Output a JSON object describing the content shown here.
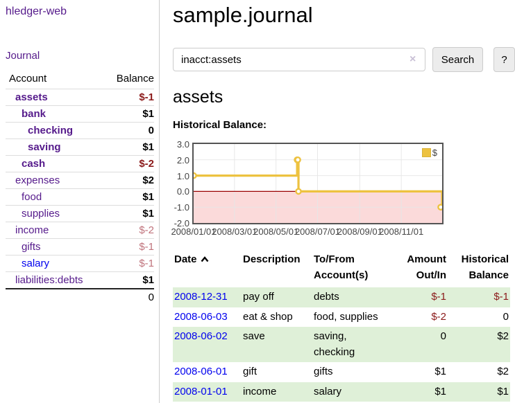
{
  "sidebar": {
    "app_title": "hledger-web",
    "journal_link": "Journal",
    "accounts_table": {
      "headers": {
        "account": "Account",
        "balance": "Balance"
      },
      "rows": [
        {
          "name": "assets",
          "depth": 1,
          "bold": true,
          "balance": "$-1",
          "balance_style": "neg-strong"
        },
        {
          "name": "bank",
          "depth": 2,
          "bold": true,
          "balance": "$1",
          "balance_style": ""
        },
        {
          "name": "checking",
          "depth": 3,
          "bold": true,
          "balance": "0",
          "balance_style": ""
        },
        {
          "name": "saving",
          "depth": 3,
          "bold": true,
          "balance": "$1",
          "balance_style": ""
        },
        {
          "name": "cash",
          "depth": 2,
          "bold": true,
          "balance": "$-2",
          "balance_style": "neg-strong"
        },
        {
          "name": "expenses",
          "depth": 1,
          "bold": false,
          "balance": "$2",
          "balance_style": ""
        },
        {
          "name": "food",
          "depth": 2,
          "bold": false,
          "balance": "$1",
          "balance_style": ""
        },
        {
          "name": "supplies",
          "depth": 2,
          "bold": false,
          "balance": "$1",
          "balance_style": ""
        },
        {
          "name": "income",
          "depth": 1,
          "bold": false,
          "balance": "$-2",
          "balance_style": "neg-faded"
        },
        {
          "name": "gifts",
          "depth": 2,
          "bold": false,
          "balance": "$-1",
          "balance_style": "neg-faded"
        },
        {
          "name": "salary",
          "depth": 2,
          "bold": false,
          "balance": "$-1",
          "balance_style": "neg-faded",
          "link_blue": true
        },
        {
          "name": "liabilities:debts",
          "depth": 1,
          "bold": false,
          "balance": "$1",
          "balance_style": ""
        }
      ],
      "total": "0"
    }
  },
  "main": {
    "title": "sample.journal",
    "search": {
      "value": "inacct:assets",
      "clear_icon": "×",
      "search_button": "Search",
      "help_button": "?"
    },
    "account_heading": "assets",
    "chart_heading": "Historical Balance:"
  },
  "chart_data": {
    "type": "line",
    "title": "Historical Balance",
    "style": "step-after with point markers, negative region shaded",
    "series": [
      {
        "name": "$",
        "color": "#edc240",
        "points": [
          {
            "x": "2008-01-01",
            "y": 1
          },
          {
            "x": "2008-06-01",
            "y": 2
          },
          {
            "x": "2008-06-02",
            "y": 2
          },
          {
            "x": "2008-06-03",
            "y": 0
          },
          {
            "x": "2008-12-31",
            "y": -1
          }
        ]
      }
    ],
    "x_range": [
      "2008-01-01",
      "2008-12-31"
    ],
    "x_ticks": [
      "2008/01/01",
      "2008/03/01",
      "2008/05/01",
      "2008/07/01",
      "2008/09/01",
      "2008/11/01"
    ],
    "y_ticks": [
      "3.0",
      "2.0",
      "1.0",
      "0.0",
      "-1.0",
      "-2.0"
    ],
    "ylim": [
      -2,
      3
    ],
    "grid": true,
    "legend": {
      "label": "$",
      "position": "top-right"
    },
    "colors": {
      "line": "#edc240",
      "negative_region": "#fbdada",
      "zero_line": "#990000",
      "grid": "#e6e6e6",
      "plot_border": "#545454"
    }
  },
  "register_table": {
    "headers": {
      "date": "Date",
      "description": "Description",
      "tofrom": "To/From\nAccount(s)",
      "amount": "Amount\nOut/In",
      "balance": "Historical\nBalance"
    },
    "sort": {
      "column": "date",
      "direction": "ascending"
    },
    "rows": [
      {
        "date": "2008-12-31",
        "description": "pay off",
        "tofrom": "debts",
        "amount": "$-1",
        "amount_neg": true,
        "balance": "$-1",
        "balance_neg": true,
        "shaded": true
      },
      {
        "date": "2008-06-03",
        "description": "eat & shop",
        "tofrom": "food, supplies",
        "amount": "$-2",
        "amount_neg": true,
        "balance": "0",
        "balance_neg": false,
        "shaded": false
      },
      {
        "date": "2008-06-02",
        "description": "save",
        "tofrom": "saving,\nchecking",
        "amount": "0",
        "amount_neg": false,
        "balance": "$2",
        "balance_neg": false,
        "shaded": true
      },
      {
        "date": "2008-06-01",
        "description": "gift",
        "tofrom": "gifts",
        "amount": "$1",
        "amount_neg": false,
        "balance": "$2",
        "balance_neg": false,
        "shaded": false
      },
      {
        "date": "2008-01-01",
        "description": "income",
        "tofrom": "salary",
        "amount": "$1",
        "amount_neg": false,
        "balance": "$1",
        "balance_neg": false,
        "shaded": true
      }
    ]
  },
  "colors": {
    "link_purple": "#551a8b",
    "link_blue": "#0000ee",
    "negative_strong": "#8b1a1a",
    "negative_faded": "#c0737c",
    "row_shade_green": "#dff0d8",
    "sidebar_divider": "#cccccc"
  }
}
